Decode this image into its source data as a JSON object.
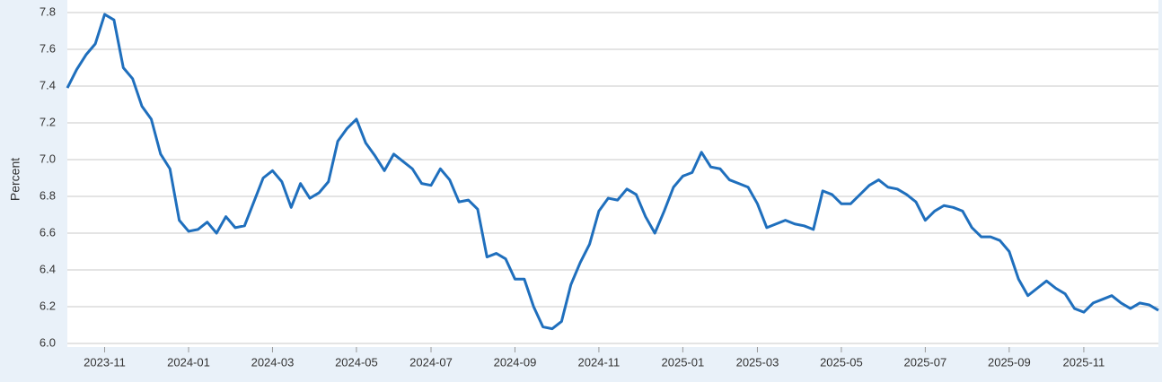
{
  "chart_data": {
    "type": "line",
    "ylabel": "Percent",
    "color": "#1f6fbd",
    "categories": [
      null,
      null,
      null,
      null,
      "2023-11",
      null,
      null,
      null,
      null,
      null,
      null,
      null,
      null,
      "2024-01",
      null,
      null,
      null,
      null,
      null,
      null,
      null,
      null,
      "2024-03",
      null,
      null,
      null,
      null,
      null,
      null,
      null,
      null,
      "2024-05",
      null,
      null,
      null,
      null,
      null,
      null,
      null,
      "2024-07",
      null,
      null,
      null,
      null,
      null,
      null,
      null,
      null,
      "2024-09",
      null,
      null,
      null,
      null,
      null,
      null,
      null,
      null,
      "2024-11",
      null,
      null,
      null,
      null,
      null,
      null,
      null,
      null,
      "2025-01",
      null,
      null,
      null,
      null,
      null,
      null,
      null,
      "2025-03",
      null,
      null,
      null,
      null,
      null,
      null,
      null,
      null,
      "2025-05",
      null,
      null,
      null,
      null,
      null,
      null,
      null,
      null,
      "2025-07",
      null,
      null,
      null,
      null,
      null,
      null,
      null,
      null,
      "2025-09",
      null,
      null,
      null,
      null,
      null,
      null,
      null,
      "2025-11",
      null,
      null,
      null,
      null,
      null,
      null,
      null,
      null
    ],
    "values": [
      7.39,
      7.49,
      7.57,
      7.63,
      7.79,
      7.76,
      7.5,
      7.44,
      7.29,
      7.22,
      7.03,
      6.95,
      6.67,
      6.61,
      6.62,
      6.66,
      6.6,
      6.69,
      6.63,
      6.64,
      6.77,
      6.9,
      6.94,
      6.88,
      6.74,
      6.87,
      6.79,
      6.82,
      6.88,
      7.1,
      7.17,
      7.22,
      7.09,
      7.02,
      6.94,
      7.03,
      6.99,
      6.95,
      6.87,
      6.86,
      6.95,
      6.89,
      6.77,
      6.78,
      6.73,
      6.47,
      6.49,
      6.46,
      6.35,
      6.35,
      6.2,
      6.09,
      6.08,
      6.12,
      6.32,
      6.44,
      6.54,
      6.72,
      6.79,
      6.78,
      6.84,
      6.81,
      6.69,
      6.6,
      6.72,
      6.85,
      6.91,
      6.93,
      7.04,
      6.96,
      6.95,
      6.89,
      6.87,
      6.85,
      6.76,
      6.63,
      6.65,
      6.67,
      6.65,
      6.64,
      6.62,
      6.83,
      6.81,
      6.76,
      6.76,
      6.81,
      6.86,
      6.89,
      6.85,
      6.84,
      6.81,
      6.77,
      6.67,
      6.72,
      6.75,
      6.74,
      6.72,
      6.63,
      6.58,
      6.58,
      6.56,
      6.5,
      6.35,
      6.26,
      6.3,
      6.34,
      6.3,
      6.27,
      6.19,
      6.17,
      6.22,
      6.24,
      6.26,
      6.22,
      6.19,
      6.22,
      6.21,
      6.18
    ],
    "ylim": [
      6.0,
      7.8
    ],
    "yticks": [
      {
        "value": 6,
        "label": "6.0"
      },
      6.2,
      6.4,
      6.6,
      6.8,
      {
        "value": 7,
        "label": "7.0"
      },
      7.2,
      7.4,
      7.6,
      7.8
    ],
    "grid": true
  }
}
